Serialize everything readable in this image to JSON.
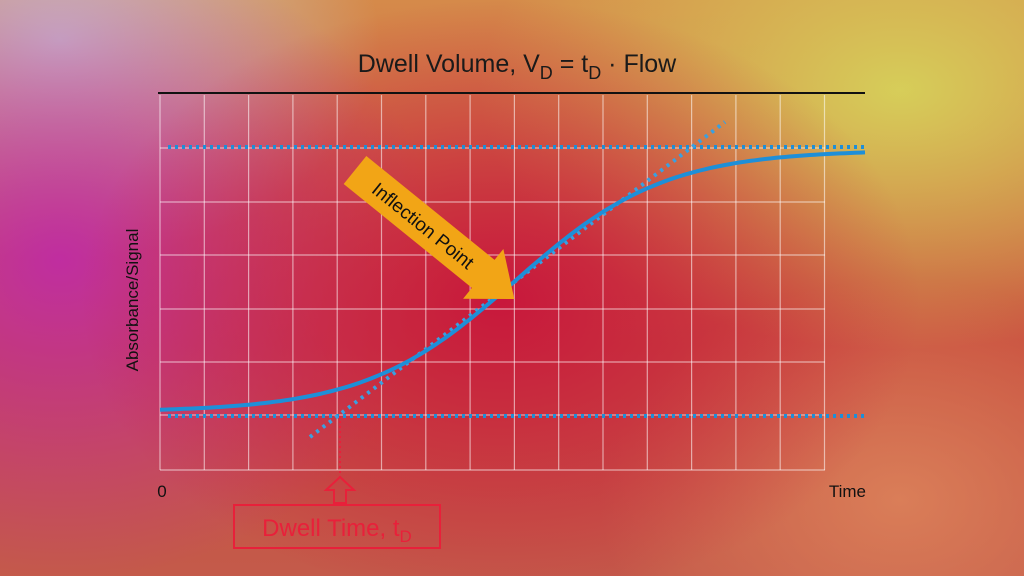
{
  "title": {
    "prefix": "Dwell Volume, V",
    "sub1": "D",
    "mid": " = t",
    "sub2": "D",
    "suffix": " · Flow"
  },
  "y_axis_label": "Absorbance/Signal",
  "x_axis": {
    "origin": "0",
    "label": "Time"
  },
  "annotation_arrow": "Inflection Point",
  "dwell_box": {
    "text": "Dwell Time, t",
    "sub": "D"
  },
  "colors": {
    "curve": "#1e8fd8",
    "arrow": "#f2a516",
    "dwell": "#e8203a",
    "title": "#1a1a1a"
  }
}
